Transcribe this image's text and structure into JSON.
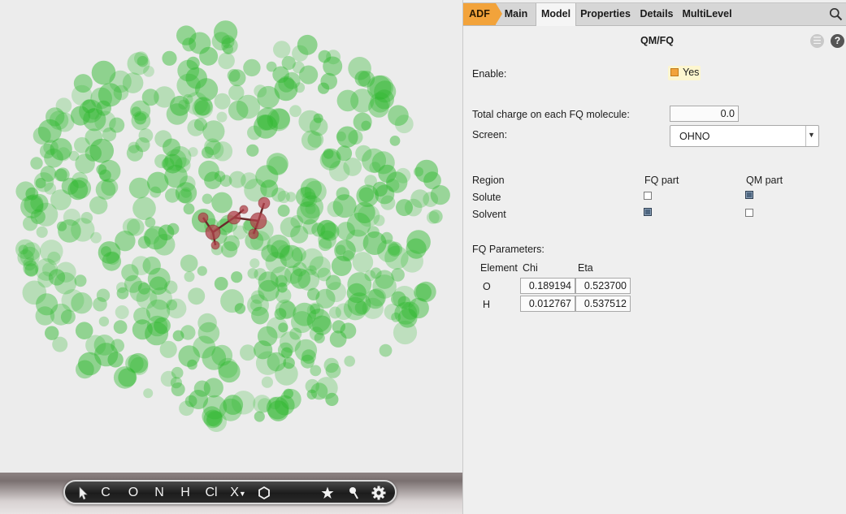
{
  "toolbar": {
    "tools": [
      {
        "name": "select-arrow-icon",
        "label": ""
      },
      {
        "name": "atom-c",
        "label": "C"
      },
      {
        "name": "atom-o",
        "label": "O"
      },
      {
        "name": "atom-n",
        "label": "N"
      },
      {
        "name": "atom-h",
        "label": "H"
      },
      {
        "name": "atom-cl",
        "label": "Cl"
      },
      {
        "name": "atom-x",
        "label": "X"
      },
      {
        "name": "ring-icon",
        "label": ""
      },
      {
        "name": "star-icon",
        "label": ""
      },
      {
        "name": "pin-icon",
        "label": ""
      },
      {
        "name": "gear-icon",
        "label": ""
      }
    ]
  },
  "tabs": {
    "adf": "ADF",
    "main": "Main",
    "model": "Model",
    "properties": "Properties",
    "details": "Details",
    "multilevel": "MultiLevel"
  },
  "panel": {
    "title": "QM/FQ",
    "enable_label": "Enable:",
    "enable_value": "Yes",
    "charge_label": "Total charge on each FQ molecule:",
    "charge_value": "0.0",
    "screen_label": "Screen:",
    "screen_value": "OHNO",
    "region": {
      "headers": [
        "Region",
        "FQ part",
        "QM part"
      ],
      "rows": [
        {
          "name": "Solute",
          "fq": false,
          "qm": true
        },
        {
          "name": "Solvent",
          "fq": true,
          "qm": false
        }
      ]
    },
    "fq_params_label": "FQ Parameters:",
    "fq_params": {
      "headers": [
        "Element",
        "Chi",
        "Eta"
      ],
      "rows": [
        {
          "element": "O",
          "chi": "0.189194",
          "eta": "0.523700"
        },
        {
          "element": "H",
          "chi": "0.012767",
          "eta": "0.537512"
        }
      ]
    }
  },
  "colors": {
    "adf_tab": "#f2a33b",
    "solvent_sphere": "#2fb82f",
    "solute_atom": "#b0404a",
    "checked": "#4f6680"
  }
}
